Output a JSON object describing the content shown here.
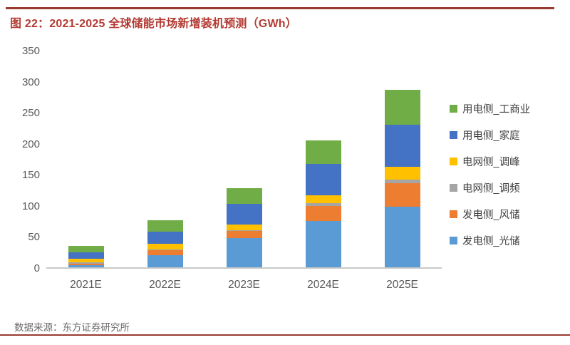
{
  "header": {
    "title": "图 22：2021-2025 全球储能市场新增装机预测（GWh）"
  },
  "footer": {
    "source": "数据来源：东方证券研究所"
  },
  "colors": {
    "accent_red": "#9a3b31",
    "title_red": "#b23a32",
    "axis_line": "#c9c9c9",
    "tick_text": "#595959",
    "legend_text": "#404040"
  },
  "chart_data": {
    "type": "bar",
    "stacked": true,
    "title": "2021-2025 全球储能市场新增装机预测（GWh）",
    "xlabel": "",
    "ylabel": "",
    "categories": [
      "2021E",
      "2022E",
      "2023E",
      "2024E",
      "2025E"
    ],
    "series": [
      {
        "name": "用电侧_工商业",
        "color": "#70AD47",
        "values": [
          10,
          18,
          26,
          38,
          56
        ]
      },
      {
        "name": "用电侧_家庭",
        "color": "#4472C4",
        "values": [
          10,
          20,
          33,
          50,
          68
        ]
      },
      {
        "name": "电网侧_调峰",
        "color": "#FFC000",
        "values": [
          6,
          9,
          9,
          13,
          21
        ]
      },
      {
        "name": "电网侧_调频",
        "color": "#A5A5A5",
        "values": [
          2,
          2,
          2,
          4,
          6
        ]
      },
      {
        "name": "发电侧_风储",
        "color": "#ED7D31",
        "values": [
          2,
          7,
          11,
          24,
          37
        ]
      },
      {
        "name": "发电侧_光储",
        "color": "#5B9BD5",
        "values": [
          4,
          20,
          47,
          75,
          98
        ]
      }
    ],
    "totals": [
      34,
      76,
      128,
      204,
      286
    ],
    "ylim": [
      0,
      350
    ],
    "yticks": [
      350,
      300,
      250,
      200,
      150,
      100,
      50,
      0
    ],
    "grid": false,
    "legend_position": "right"
  }
}
